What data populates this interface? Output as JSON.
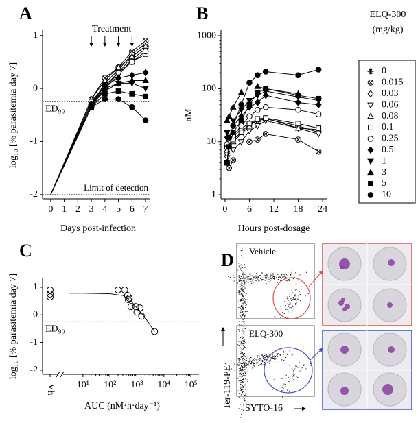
{
  "chart_data": [
    {
      "type": "line",
      "panel_label": "A",
      "x_label": "Days post-infection",
      "y_label": "log₁₀ [% parasitemia day 7]",
      "annotation": "Treatment",
      "treatment_days": [
        3,
        4,
        5,
        6
      ],
      "ed90_label": "ED₉₀",
      "ed90": -0.25,
      "lod_label": "Limit of detection",
      "lod": -2,
      "xlim": [
        -0.6,
        7.3
      ],
      "xticks": [
        0,
        1,
        2,
        3,
        4,
        5,
        6,
        7
      ],
      "ylim": [
        -2.08,
        1.1
      ],
      "yticks": [
        -2,
        -1,
        0,
        1
      ],
      "legend_title": [
        "ELQ-300",
        "(mg/kg)"
      ],
      "x": [
        0,
        3,
        4,
        5,
        6,
        7
      ],
      "series": [
        {
          "name": "0",
          "marker": "star",
          "values": [
            -2,
            -0.25,
            0.05,
            0.3,
            0.6,
            0.8
          ]
        },
        {
          "name": "0.015",
          "marker": "circle-x",
          "values": [
            -2,
            -0.2,
            0.2,
            0.4,
            0.7,
            0.9
          ]
        },
        {
          "name": "0.03",
          "marker": "diamond",
          "values": [
            -2,
            -0.3,
            0.1,
            0.35,
            0.65,
            0.85
          ]
        },
        {
          "name": "0.06",
          "marker": "tri-down",
          "values": [
            -2,
            -0.35,
            0.0,
            0.25,
            0.55,
            0.75
          ]
        },
        {
          "name": "0.08",
          "marker": "tri-up",
          "values": [
            -2,
            -0.2,
            0.15,
            0.4,
            0.6,
            0.8
          ]
        },
        {
          "name": "0.1",
          "marker": "square",
          "values": [
            -2,
            -0.25,
            0.05,
            0.3,
            0.5,
            0.65
          ]
        },
        {
          "name": "0.25",
          "marker": "circle",
          "values": [
            -2,
            -0.3,
            0.0,
            0.3,
            0.5,
            0.7
          ]
        },
        {
          "name": "0.5",
          "marker": "diamond-filled",
          "values": [
            -2,
            -0.3,
            0.05,
            0.2,
            0.25,
            0.3
          ]
        },
        {
          "name": "1",
          "marker": "tri-down-filled",
          "values": [
            -2,
            -0.3,
            -0.05,
            0.1,
            0.1,
            0.0
          ]
        },
        {
          "name": "3",
          "marker": "tri-up-filled",
          "values": [
            -2,
            -0.3,
            0.0,
            0.1,
            0.15,
            0.15
          ]
        },
        {
          "name": "5",
          "marker": "square-filled",
          "values": [
            -2,
            -0.35,
            -0.1,
            -0.05,
            -0.1,
            -0.15
          ]
        },
        {
          "name": "10",
          "marker": "circle-filled",
          "values": [
            -2,
            -0.35,
            -0.2,
            -0.2,
            -0.35,
            -0.6
          ]
        }
      ]
    },
    {
      "type": "line",
      "panel_label": "B",
      "x_label": "Hours post-dosage",
      "y_label": "nM",
      "log_y": true,
      "xlim": [
        -1,
        25
      ],
      "xticks": [
        0,
        6,
        12,
        18,
        24
      ],
      "ylim": [
        0.84,
        1270
      ],
      "yticks": [
        1,
        10,
        100,
        1000
      ],
      "x": [
        0.5,
        1,
        2,
        4,
        6,
        8,
        10,
        18,
        23
      ],
      "series": [
        {
          "marker": "circle-x",
          "values": [
            null,
            3.2,
            4.5,
            null,
            10,
            11,
            14,
            11,
            6.5
          ]
        },
        {
          "marker": "diamond",
          "values": [
            6,
            null,
            12,
            18,
            22,
            25,
            27,
            20,
            15
          ]
        },
        {
          "marker": "tri-down",
          "values": [
            5,
            null,
            7,
            10,
            16,
            20,
            25,
            18,
            14
          ]
        },
        {
          "marker": "tri-up",
          "values": [
            7,
            null,
            10,
            14,
            20,
            26,
            28,
            18,
            17
          ]
        },
        {
          "marker": "square",
          "values": [
            8,
            null,
            11,
            15,
            22,
            27,
            28,
            22,
            18
          ]
        },
        {
          "marker": "circle",
          "values": [
            9,
            null,
            13,
            20,
            30,
            40,
            45,
            40,
            33
          ]
        },
        {
          "marker": "diamond-filled",
          "values": [
            12,
            null,
            20,
            30,
            45,
            55,
            75,
            55,
            50
          ]
        },
        {
          "marker": "tri-down-filled",
          "values": [
            15,
            null,
            25,
            40,
            60,
            75,
            90,
            70,
            60
          ]
        },
        {
          "marker": "tri-up-filled",
          "values": [
            25,
            30,
            45,
            85,
            null,
            110,
            100,
            80,
            null
          ]
        },
        {
          "marker": "square-filled",
          "values": [
            4,
            8,
            15,
            25,
            50,
            85,
            100,
            75,
            65
          ]
        },
        {
          "marker": "circle-filled",
          "values": [
            4,
            12,
            20,
            50,
            130,
            180,
            210,
            180,
            230
          ]
        }
      ]
    },
    {
      "type": "scatter",
      "panel_label": "C",
      "x_label": "AUC (nM·h·day⁻¹)",
      "y_label": "log₁₀ [% parasitemia day 7]",
      "log_x": true,
      "ed90_label": "ED₉₀",
      "ed90": -0.25,
      "xlim": [
        2.2,
        200000
      ],
      "xticks": [
        {
          "value": 10,
          "label": "10¹"
        },
        {
          "value": 100,
          "label": "10²"
        },
        {
          "value": 1000,
          "label": "10³"
        },
        {
          "value": 10000,
          "label": "10⁴"
        },
        {
          "value": 100000,
          "label": "10⁵"
        }
      ],
      "ylim": [
        -2.15,
        1.32
      ],
      "yticks": [
        -2,
        -1,
        0,
        1
      ],
      "vehicle": {
        "label": "Vh",
        "values": [
          0.9,
          0.75,
          0.65
        ]
      },
      "x": [
        200,
        350,
        450,
        480,
        520,
        600,
        900,
        1000,
        1300,
        1500,
        4500
      ],
      "values": [
        0.9,
        0.9,
        0.7,
        0.55,
        0.6,
        0.3,
        0.3,
        0.1,
        0.25,
        -0.05,
        -0.6
      ],
      "fit": {
        "x": [
          3,
          10,
          100,
          300,
          600,
          1000,
          2000,
          4500
        ],
        "y": [
          0.78,
          0.78,
          0.76,
          0.7,
          0.5,
          0.25,
          -0.1,
          -0.6
        ]
      }
    }
  ],
  "panel_d": {
    "panel_label": "D",
    "plots": [
      {
        "label": "Vehicle"
      },
      {
        "label": "ELQ-300"
      }
    ],
    "y_axis_label": "Ter-119-PE",
    "x_axis_label": "SYTO-16"
  }
}
